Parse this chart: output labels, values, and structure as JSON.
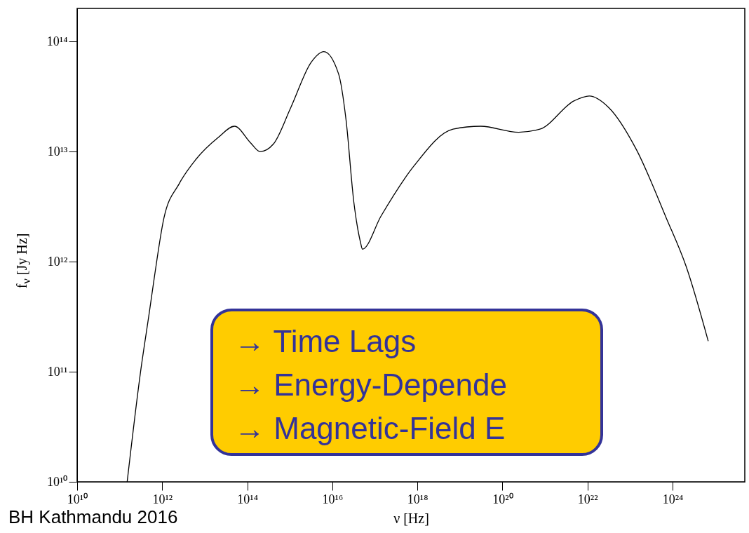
{
  "chart_data": {
    "type": "line",
    "xlabel": "ν [Hz]",
    "ylabel": "f$_{ν}$ [Jy Hz]",
    "log": "xy",
    "xlim": [
      10000000000.0,
      5e+25
    ],
    "ylim": [
      10000000000.0,
      200000000000000.0
    ],
    "xticks": [
      {
        "value": 10000000000.0,
        "label": "10¹⁰"
      },
      {
        "value": 1000000000000.0,
        "label": "10¹²"
      },
      {
        "value": 100000000000000.0,
        "label": "10¹⁴"
      },
      {
        "value": 1e+16,
        "label": "10¹⁶"
      },
      {
        "value": 1e+18,
        "label": "10¹⁸"
      },
      {
        "value": 1e+20,
        "label": "10²⁰"
      },
      {
        "value": 1e+22,
        "label": "10²²"
      },
      {
        "value": 1e+24,
        "label": "10²⁴"
      }
    ],
    "yticks": [
      {
        "value": 10000000000.0,
        "label": "10¹⁰"
      },
      {
        "value": 100000000000.0,
        "label": "10¹¹"
      },
      {
        "value": 1000000000000.0,
        "label": "10¹²"
      },
      {
        "value": 10000000000000.0,
        "label": "10¹³"
      },
      {
        "value": 100000000000000.0,
        "label": "10¹⁴"
      }
    ],
    "line_style": "solid",
    "series": [
      {
        "color": "#000000",
        "x": [
          150000000000.0,
          310000000000.0,
          500000000000.0,
          660000000000.0,
          1100000000000.0,
          2500000000000.0,
          6200000000000.0,
          21000000000000.0,
          50000000000000.0,
          120000000000000.0,
          200000000000000.0,
          410000000000000.0,
          1050000000000000.0,
          3200000000000000.0,
          6300000000000000.0,
          1.4e+16,
          2.1e+16,
          3.2e+16,
          4.6e+16,
          5.1e+16,
          1.4e+17,
          8.3e+17,
          6.9e+18,
          3.1e+19,
          2.4e+20,
          7.6e+20,
          4.9e+21,
          1.1e+22,
          3.2e+22,
          1.4e+23,
          7.1e+23,
          2.1e+24,
          6.9e+24
        ],
        "values": [
          10000000000.0,
          100000000000.0,
          350000000000.0,
          740000000000.0,
          2500000000000.0,
          5100000000000.0,
          8500000000000.0,
          13500000000000.0,
          17000000000000.0,
          12000000000000.0,
          10000000000000.0,
          11700000000000.0,
          25000000000000.0,
          65000000000000.0,
          81000000000000.0,
          51000000000000.0,
          19500000000000.0,
          3500000000000.0,
          1500000000000.0,
          1300000000000.0,
          2600000000000.0,
          7400000000000.0,
          16000000000000.0,
          17000000000000.0,
          15000000000000.0,
          16000000000000.0,
          29000000000000.0,
          32000000000000.0,
          25000000000000.0,
          10500000000000.0,
          2500000000000.0,
          900000000000.0,
          190000000000.0
        ]
      }
    ],
    "annotations": [
      "→ Time Lags",
      "→ Energy-Depende",
      "→ Magnetic-Field E",
      "BH Kathmandu 2016"
    ]
  }
}
